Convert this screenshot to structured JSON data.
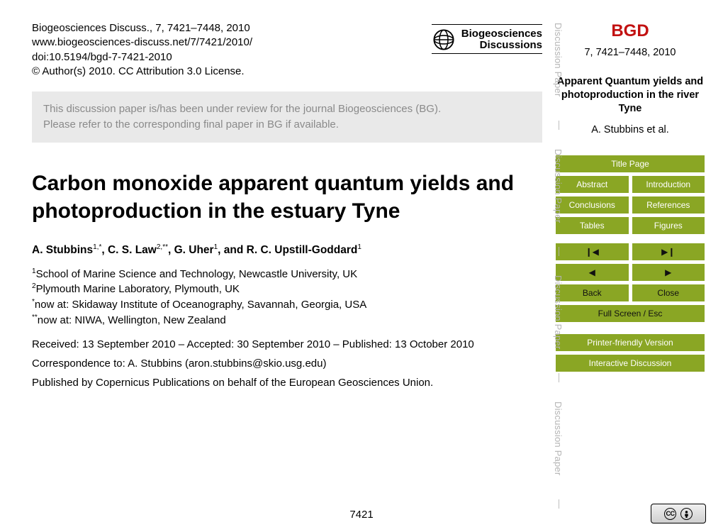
{
  "header": {
    "citation_line": "Biogeosciences Discuss., 7, 7421–7448, 2010",
    "url": "www.biogeosciences-discuss.net/7/7421/2010/",
    "doi": "doi:10.5194/bgd-7-7421-2010",
    "copyright": "© Author(s) 2010. CC Attribution 3.0 License.",
    "journal_line1": "Biogeosciences",
    "journal_line2": "Discussions"
  },
  "notice": {
    "line1": "This discussion paper is/has been under review for the journal Biogeosciences (BG).",
    "line2": "Please refer to the corresponding final paper in BG if available."
  },
  "title": "Carbon monoxide apparent quantum yields and photoproduction in the estuary Tyne",
  "authors_html": "A. Stubbins<sup>1,*</sup>, C. S. Law<sup>2,**</sup>, G. Uher<sup>1</sup>, and R. C. Upstill-Goddard<sup>1</sup>",
  "affiliations": {
    "a1": "School of Marine Science and Technology, Newcastle University, UK",
    "a2": "Plymouth Marine Laboratory, Plymouth, UK",
    "n1": "now at: Skidaway Institute of Oceanography, Savannah, Georgia, USA",
    "n2": "now at: NIWA, Wellington, New Zealand"
  },
  "dates": "Received: 13 September 2010 – Accepted: 30 September 2010 – Published: 13 October 2010",
  "correspondence": "Correspondence to: A. Stubbins (aron.stubbins@skio.usg.edu)",
  "published_by": "Published by Copernicus Publications on behalf of the European Geosciences Union.",
  "pagenum": "7421",
  "sidebar": {
    "abbrev": "BGD",
    "volume": "7, 7421–7448, 2010",
    "short_title": "Apparent Quantum yields and photoproduction in the river Tyne",
    "authors": "A. Stubbins et al.",
    "nav": {
      "title_page": "Title Page",
      "abstract": "Abstract",
      "introduction": "Introduction",
      "conclusions": "Conclusions",
      "references": "References",
      "tables": "Tables",
      "figures": "Figures",
      "first": "◀❘",
      "last": "❘▶",
      "prev": "◀",
      "next": "▶",
      "back": "Back",
      "close": "Close",
      "fullscreen": "Full Screen / Esc",
      "printer": "Printer-friendly Version",
      "interactive": "Interactive Discussion"
    },
    "vertical_label": "Discussion Paper",
    "colors": {
      "accent": "#8aa624",
      "bgd_red": "#c21111",
      "vlabel": "#b4b4b4"
    }
  },
  "cc": {
    "cc": "CC",
    "by_inner": "●"
  },
  "vlabels": {
    "positions": [
      32,
      210,
      388,
      566
    ],
    "seps": [
      170,
      348,
      526,
      704
    ]
  }
}
